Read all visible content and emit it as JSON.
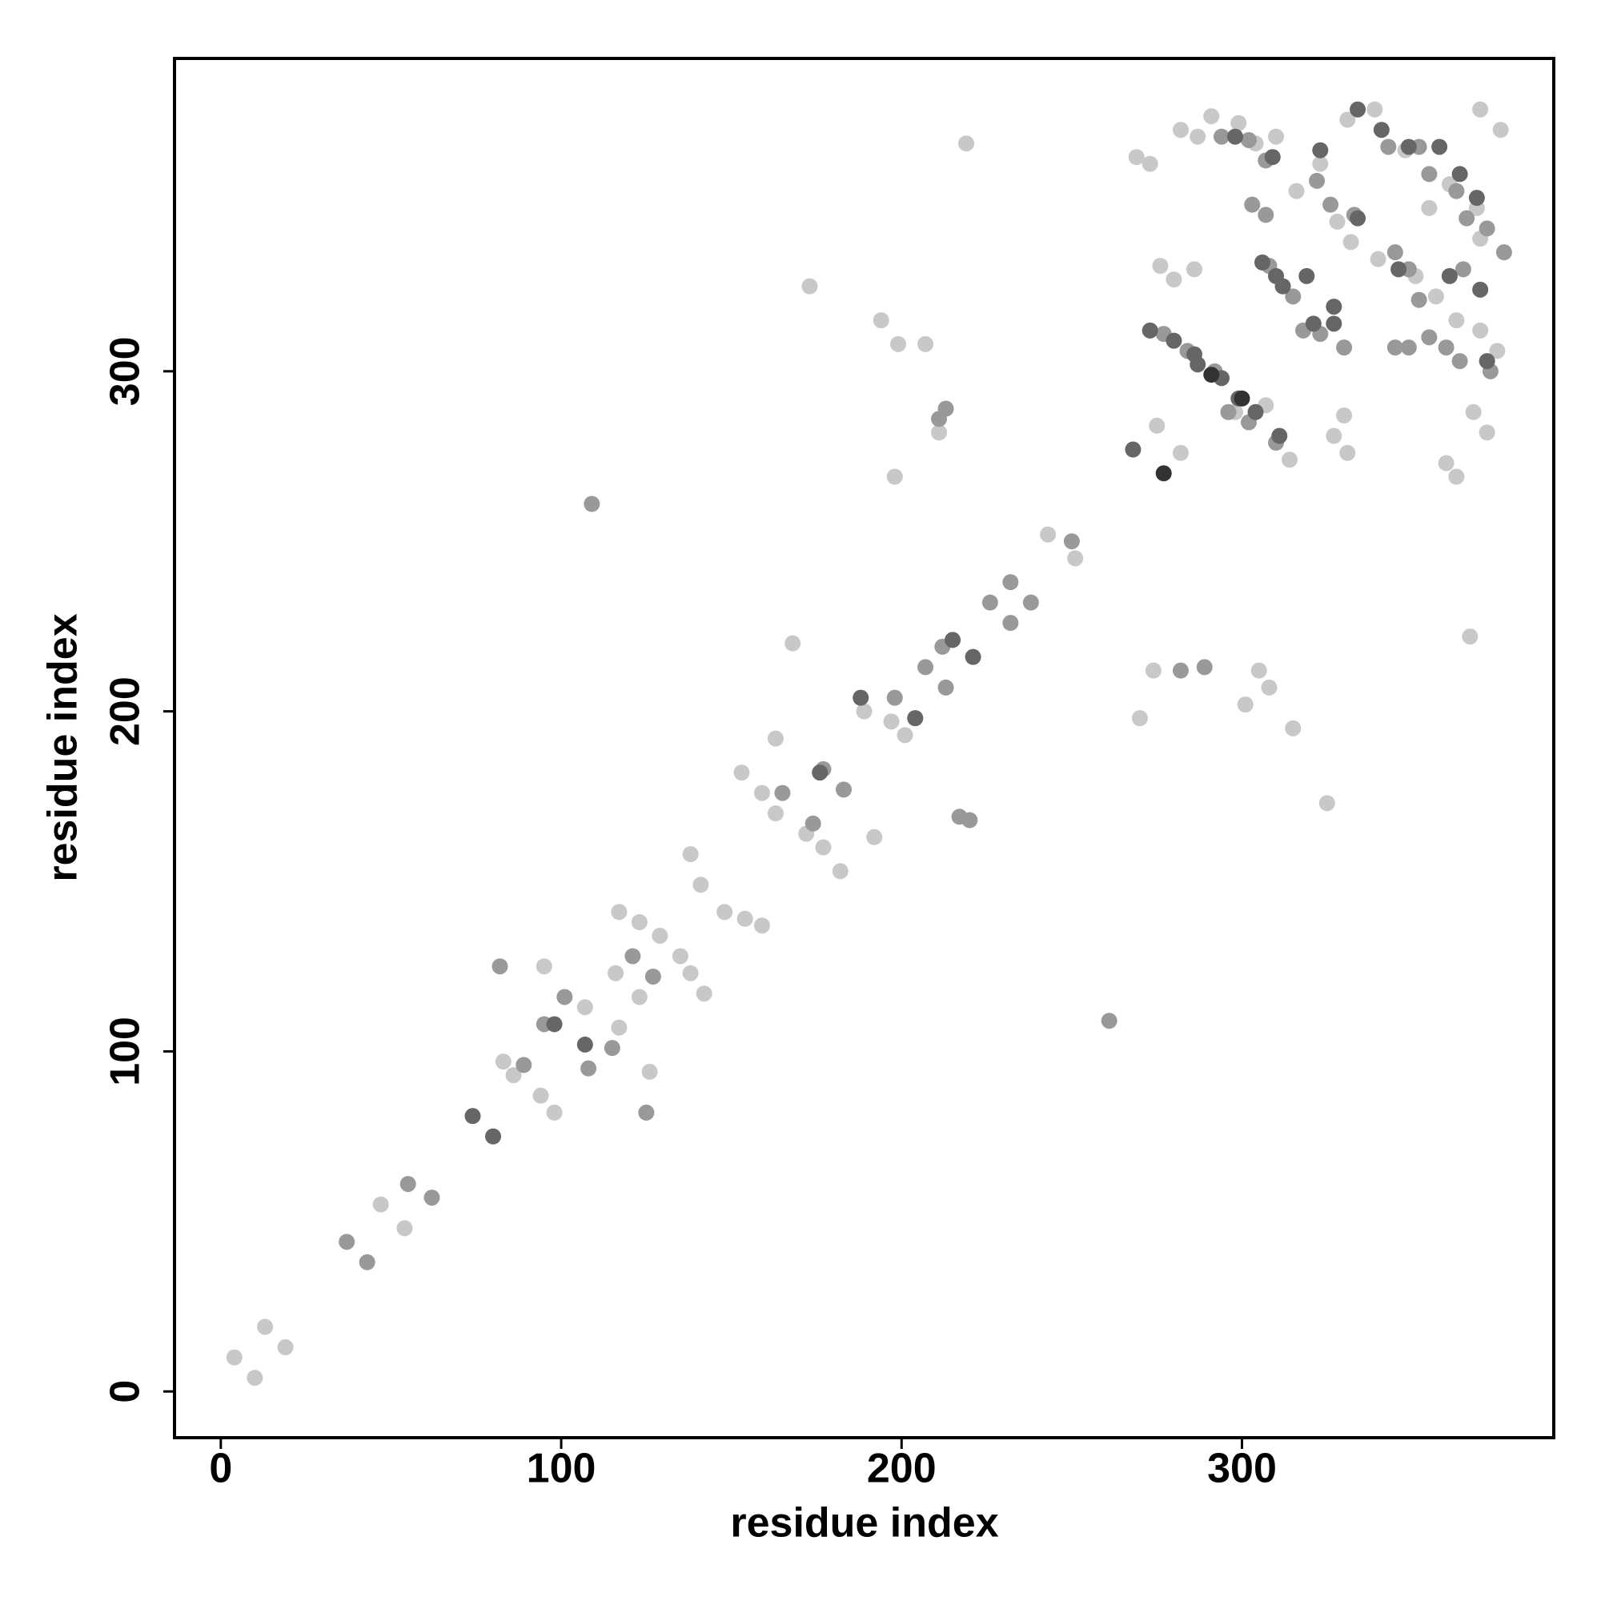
{
  "chart_data": {
    "type": "scatter",
    "xlabel": "residue index",
    "ylabel": "residue index",
    "xlim": [
      -13.6,
      391.6
    ],
    "ylim": [
      -13.6,
      392
    ],
    "xticks": [
      0,
      100,
      200,
      300
    ],
    "yticks": [
      0,
      100,
      200,
      300
    ],
    "series": [
      {
        "color": "#c8c8c8",
        "x": [
          4,
          10,
          13,
          19,
          47,
          54,
          83,
          86,
          95,
          98,
          94,
          107,
          116,
          117,
          123,
          126,
          117,
          123,
          129,
          135,
          138,
          142,
          138,
          141,
          148,
          154,
          159,
          153,
          159,
          163,
          163,
          168,
          172,
          177,
          182,
          192,
          189,
          201,
          197,
          219,
          173,
          194,
          199,
          207,
          211,
          198,
          243,
          251,
          269,
          273,
          276,
          280,
          275,
          282,
          286,
          274,
          270,
          301,
          308,
          315,
          325,
          305,
          282,
          287,
          291,
          299,
          304,
          310,
          316,
          323,
          331,
          339,
          348,
          328,
          332,
          340,
          351,
          357,
          363,
          370,
          375,
          370,
          369,
          361,
          376,
          370,
          355,
          368,
          372,
          360,
          363,
          330,
          327,
          331,
          367,
          307,
          314,
          298
        ],
        "y": [
          10,
          4,
          19,
          13,
          55,
          48,
          97,
          93,
          125,
          82,
          87,
          113,
          123,
          107,
          116,
          94,
          141,
          138,
          134,
          128,
          123,
          117,
          158,
          149,
          141,
          139,
          137,
          182,
          176,
          170,
          192,
          220,
          164,
          160,
          153,
          163,
          200,
          193,
          197,
          367,
          325,
          315,
          308,
          308,
          282,
          269,
          252,
          245,
          363,
          361,
          331,
          327,
          284,
          276,
          330,
          212,
          198,
          202,
          207,
          195,
          173,
          212,
          371,
          369,
          375,
          373,
          367,
          369,
          353,
          361,
          374,
          377,
          365,
          344,
          338,
          333,
          328,
          322,
          315,
          312,
          306,
          339,
          348,
          355,
          371,
          377,
          348,
          288,
          282,
          273,
          269,
          287,
          281,
          276,
          222,
          290,
          274,
          288
        ]
      },
      {
        "color": "#999999",
        "x": [
          37,
          43,
          55,
          62,
          82,
          89,
          95,
          101,
          108,
          109,
          115,
          121,
          127,
          125,
          165,
          177,
          183,
          174,
          198,
          204,
          207,
          213,
          212,
          217,
          220,
          213,
          211,
          226,
          232,
          232,
          238,
          250,
          261,
          282,
          289,
          277,
          284,
          292,
          296,
          302,
          310,
          294,
          302,
          307,
          322,
          326,
          333,
          343,
          345,
          349,
          352,
          355,
          360,
          364,
          373,
          363,
          366,
          372,
          365,
          377,
          303,
          307,
          308,
          315,
          318,
          323,
          330,
          345,
          349,
          355,
          352
        ],
        "y": [
          44,
          38,
          61,
          57,
          125,
          96,
          108,
          116,
          95,
          261,
          101,
          128,
          122,
          82,
          176,
          183,
          177,
          167,
          204,
          198,
          213,
          207,
          219,
          169,
          168,
          289,
          286,
          232,
          238,
          226,
          232,
          250,
          109,
          212,
          213,
          311,
          306,
          300,
          288,
          285,
          279,
          369,
          368,
          362,
          356,
          349,
          346,
          366,
          335,
          330,
          321,
          310,
          307,
          303,
          300,
          353,
          345,
          342,
          330,
          335,
          349,
          346,
          331,
          322,
          312,
          311,
          307,
          307,
          307,
          358,
          366
        ]
      },
      {
        "color": "#666666",
        "x": [
          74,
          80,
          98,
          107,
          176,
          188,
          204,
          215,
          221,
          268,
          273,
          280,
          286,
          287,
          294,
          299,
          304,
          311,
          306,
          310,
          312,
          319,
          327,
          327,
          321,
          298,
          309,
          323,
          334,
          341,
          349,
          358,
          364,
          369,
          370,
          361,
          346,
          372,
          334
        ],
        "y": [
          81,
          75,
          108,
          102,
          182,
          204,
          198,
          221,
          216,
          277,
          312,
          309,
          305,
          302,
          298,
          292,
          288,
          281,
          332,
          328,
          325,
          328,
          314,
          319,
          314,
          369,
          363,
          365,
          377,
          371,
          366,
          366,
          358,
          351,
          324,
          328,
          330,
          303,
          345
        ]
      },
      {
        "color": "#333333",
        "x": [
          277,
          291,
          300
        ],
        "y": [
          270,
          299,
          292
        ]
      }
    ]
  }
}
